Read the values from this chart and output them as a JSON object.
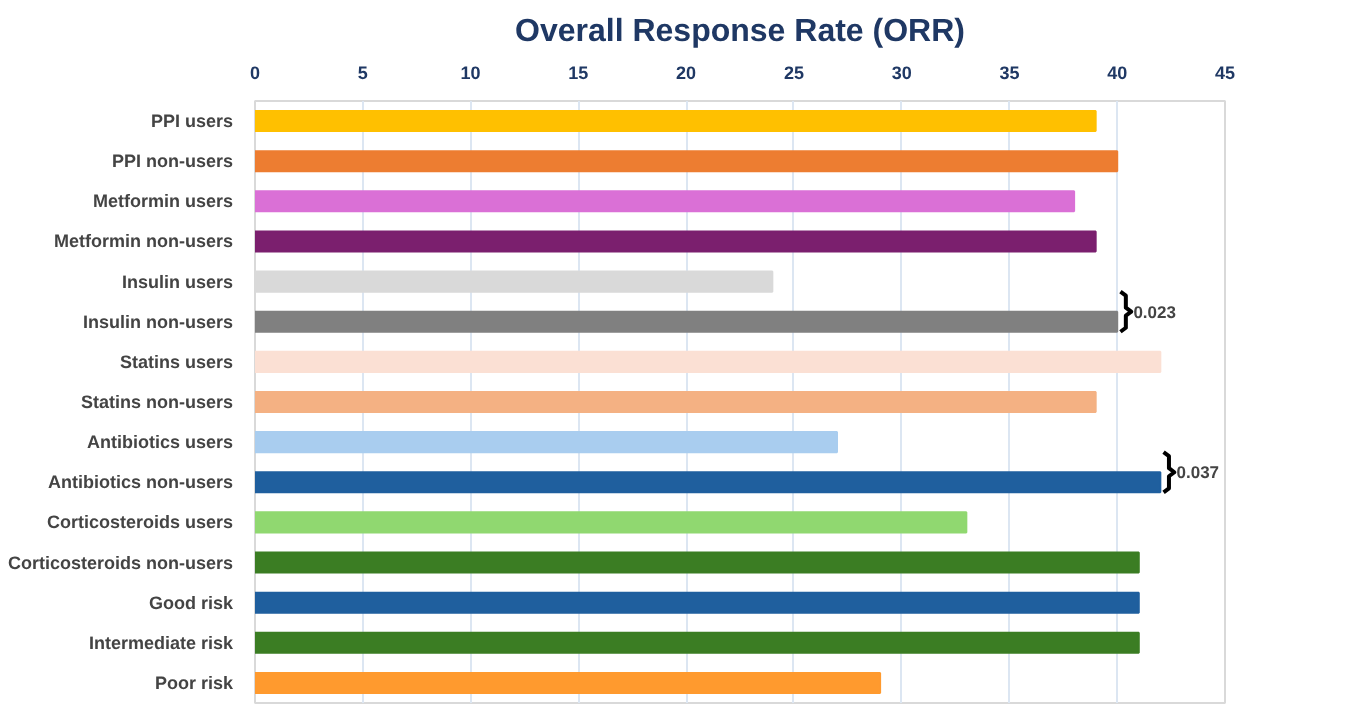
{
  "chart_data": {
    "type": "bar",
    "orientation": "horizontal",
    "title": "Overall Response Rate (ORR)",
    "categories": [
      "PPI users",
      "PPI non-users",
      "Metformin users",
      "Metformin non-users",
      "Insulin users",
      "Insulin non-users",
      "Statins users",
      "Statins non-users",
      "Antibiotics users",
      "Antibiotics non-users",
      "Corticosteroids users",
      "Corticosteroids non-users",
      "Good risk",
      "Intermediate risk",
      "Poor risk"
    ],
    "values": [
      39,
      40,
      38,
      39,
      24,
      40,
      42,
      39,
      27,
      42,
      33,
      41,
      41,
      41,
      29
    ],
    "colors": [
      "#ffc000",
      "#ed7d31",
      "#da70d6",
      "#7b1f6e",
      "#d9d9d9",
      "#808080",
      "#fbe0d4",
      "#f4b183",
      "#a9cdef",
      "#1f5f9e",
      "#90d870",
      "#3b7d23",
      "#1f5f9e",
      "#3b7d23",
      "#ff9a2e"
    ],
    "xlim": [
      0,
      45
    ],
    "xticks": [
      0,
      5,
      10,
      15,
      20,
      25,
      30,
      35,
      40,
      45
    ],
    "grid": "x",
    "annotations": [
      {
        "text": "0.023",
        "x": 40,
        "y": "Insulin non-users"
      },
      {
        "text": "0.037",
        "x": 42,
        "y": "Antibiotics non-users"
      }
    ]
  }
}
